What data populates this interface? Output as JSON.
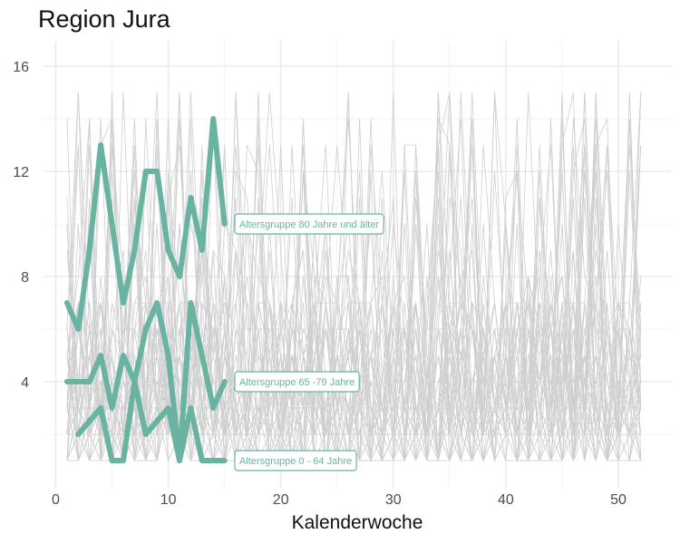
{
  "chart_data": {
    "type": "line",
    "title": "Region Jura",
    "xlabel": "Kalenderwoche",
    "ylabel": "",
    "xlim": [
      0,
      52
    ],
    "ylim": [
      0.0,
      16.0
    ],
    "x_ticks": [
      0,
      10,
      20,
      30,
      40,
      50
    ],
    "y_ticks": [
      4,
      8,
      12,
      16
    ],
    "grid": true,
    "colors": {
      "highlight": "#69b3a2",
      "background_lines": "#cfcfcf",
      "grid": "#ebebeb"
    },
    "highlight_series": [
      {
        "name": "Altersgruppe 80 Jahre und älter",
        "x": [
          1,
          2,
          3,
          4,
          5,
          6,
          7,
          8,
          9,
          10,
          11,
          12,
          13,
          14,
          15
        ],
        "values": [
          7,
          6,
          9,
          13,
          10,
          7,
          9,
          12,
          12,
          9,
          8,
          11,
          9,
          14,
          10
        ]
      },
      {
        "name": "Altersgruppe 65 -79 Jahre",
        "x": [
          1,
          2,
          3,
          4,
          5,
          6,
          7,
          8,
          9,
          10,
          11,
          12,
          13,
          14,
          15
        ],
        "values": [
          4,
          4,
          4,
          5,
          3,
          5,
          4,
          6,
          7,
          5,
          1,
          7,
          5,
          3,
          4
        ]
      },
      {
        "name": "Altersgruppe 0 - 64 Jahre",
        "x": [
          2,
          3,
          4,
          5,
          6,
          7,
          8,
          9,
          10,
          11,
          12,
          13,
          14,
          15
        ],
        "values": [
          2,
          2.5,
          3,
          1,
          1,
          4,
          2,
          2.5,
          3,
          1,
          3,
          1,
          1,
          1
        ]
      }
    ],
    "background_series_note": "Many thin grey lines for other regions/weeks, ranging approx. 1–16"
  }
}
